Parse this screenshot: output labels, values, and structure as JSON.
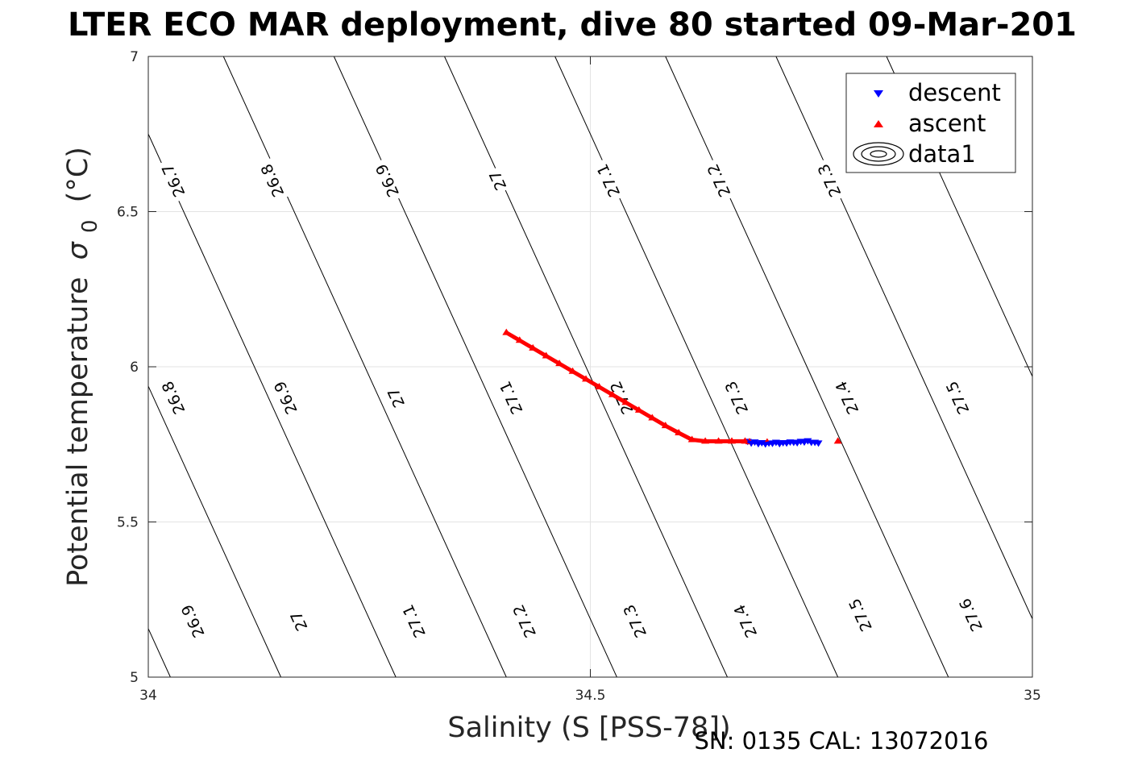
{
  "chart_data": {
    "type": "scatter",
    "title": "LTER ECO MAR deployment, dive 80 started 09-Mar-201",
    "xlabel": "Salinity (S [PSS-78])",
    "ylabel": "Potential temperature",
    "ylabel_symbol": "σ",
    "ylabel_subscript": "0",
    "ylabel_unit": "(°C)",
    "xlim": [
      34,
      35
    ],
    "ylim": [
      5,
      7
    ],
    "xticks": [
      34,
      34.5,
      35
    ],
    "xtick_labels": [
      "34",
      "34.5",
      "35"
    ],
    "yticks": [
      5,
      5.5,
      6,
      6.5,
      7
    ],
    "ytick_labels": [
      "5",
      "5.5",
      "6",
      "6.5",
      "7"
    ],
    "grid": true,
    "legend_position": "top-right",
    "series": [
      {
        "name": "descent",
        "marker": "triangle-down",
        "color": "#0000ff",
        "x": [
          34.678,
          34.682,
          34.686,
          34.69,
          34.694,
          34.698,
          34.702,
          34.706,
          34.71,
          34.714,
          34.718,
          34.722,
          34.726,
          34.73,
          34.734,
          34.738,
          34.742,
          34.746,
          34.75,
          34.754,
          34.758
        ],
        "y": [
          5.76,
          5.755,
          5.758,
          5.753,
          5.756,
          5.752,
          5.755,
          5.754,
          5.757,
          5.753,
          5.756,
          5.755,
          5.758,
          5.757,
          5.756,
          5.76,
          5.758,
          5.762,
          5.757,
          5.757,
          5.755
        ]
      },
      {
        "name": "ascent",
        "marker": "triangle-up",
        "color": "#ff0000",
        "x": [
          34.405,
          34.42,
          34.435,
          34.45,
          34.465,
          34.48,
          34.495,
          34.51,
          34.525,
          34.54,
          34.555,
          34.57,
          34.585,
          34.6,
          34.615,
          34.63,
          34.645,
          34.66,
          34.675,
          34.68,
          34.7,
          34.78
        ],
        "y": [
          6.11,
          6.085,
          6.06,
          6.035,
          6.01,
          5.985,
          5.96,
          5.935,
          5.91,
          5.885,
          5.86,
          5.835,
          5.81,
          5.787,
          5.765,
          5.76,
          5.76,
          5.76,
          5.76,
          5.758,
          5.757,
          5.76
        ]
      },
      {
        "name": "data1",
        "marker": "contour",
        "color": "#000000"
      }
    ],
    "contours": [
      {
        "level": "26.7",
        "s": 34.025,
        "labels": [
          [
            34.028,
            6.6
          ]
        ]
      },
      {
        "level": "26.8",
        "s": 34.15,
        "labels": [
          [
            34.028,
            5.9
          ],
          [
            34.14,
            6.6
          ]
        ]
      },
      {
        "level": "26.9",
        "s": 34.28,
        "labels": [
          [
            34.05,
            5.18
          ],
          [
            34.155,
            5.9
          ],
          [
            34.27,
            6.6
          ]
        ]
      },
      {
        "level": "27",
        "s": 34.405,
        "labels": [
          [
            34.17,
            5.18
          ],
          [
            34.28,
            5.9
          ],
          [
            34.395,
            6.6
          ]
        ]
      },
      {
        "level": "27.1",
        "s": 34.53,
        "labels": [
          [
            34.3,
            5.18
          ],
          [
            34.41,
            5.9
          ],
          [
            34.52,
            6.6
          ]
        ]
      },
      {
        "level": "27.2",
        "s": 34.655,
        "labels": [
          [
            34.425,
            5.18
          ],
          [
            34.535,
            5.9
          ],
          [
            34.645,
            6.6
          ]
        ]
      },
      {
        "level": "27.3",
        "s": 34.78,
        "labels": [
          [
            34.55,
            5.18
          ],
          [
            34.665,
            5.9
          ],
          [
            34.77,
            6.6
          ]
        ]
      },
      {
        "level": "27.4",
        "s": 34.905,
        "labels": [
          [
            34.675,
            5.18
          ],
          [
            34.79,
            5.9
          ]
        ]
      },
      {
        "level": "27.5",
        "s": 35.03,
        "labels": [
          [
            34.805,
            5.2
          ],
          [
            34.915,
            5.9
          ]
        ]
      },
      {
        "level": "27.6",
        "s": 35.155,
        "labels": [
          [
            34.93,
            5.2
          ]
        ]
      }
    ]
  },
  "legend": {
    "items": [
      "descent",
      "ascent",
      "data1"
    ]
  },
  "footer": {
    "text": "SN: 0135  CAL: 13072016"
  }
}
